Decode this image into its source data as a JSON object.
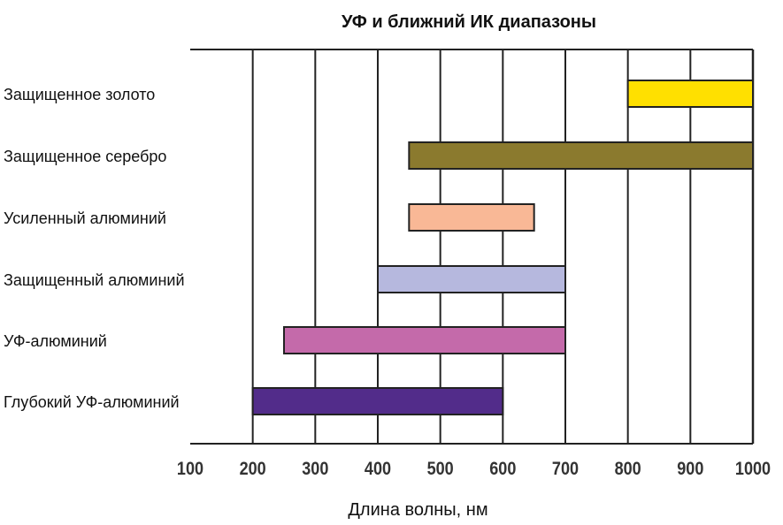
{
  "chart_data": {
    "type": "bar",
    "orientation": "horizontal-range",
    "title": "УФ и ближний ИК диапазоны",
    "xlabel": "Длина волны, нм",
    "ylabel": "",
    "xlim": [
      100,
      1000
    ],
    "xticks": [
      100,
      200,
      300,
      400,
      500,
      600,
      700,
      800,
      900,
      1000
    ],
    "xtick_labels": [
      "100",
      "200",
      "300",
      "400",
      "500",
      "600",
      "700",
      "800",
      "900",
      "1000"
    ],
    "grid": "vertical",
    "legend": "none",
    "categories": [
      "Защищенное золото",
      "Защищенное серебро",
      "Усиленный алюминий",
      "Защищенный алюминий",
      "УФ-алюминий",
      "Глубокий УФ-алюминий"
    ],
    "ranges": [
      {
        "start": 800,
        "end": 1000,
        "color": "#FFE000"
      },
      {
        "start": 450,
        "end": 1000,
        "color": "#8B7A2E"
      },
      {
        "start": 450,
        "end": 650,
        "color": "#F9B896"
      },
      {
        "start": 400,
        "end": 700,
        "color": "#B6B8DE"
      },
      {
        "start": 250,
        "end": 700,
        "color": "#C46AAA"
      },
      {
        "start": 200,
        "end": 600,
        "color": "#522C8A"
      }
    ],
    "colors": {
      "grid": "#222222",
      "bar_outline": "#222222",
      "text": "#111111"
    }
  }
}
